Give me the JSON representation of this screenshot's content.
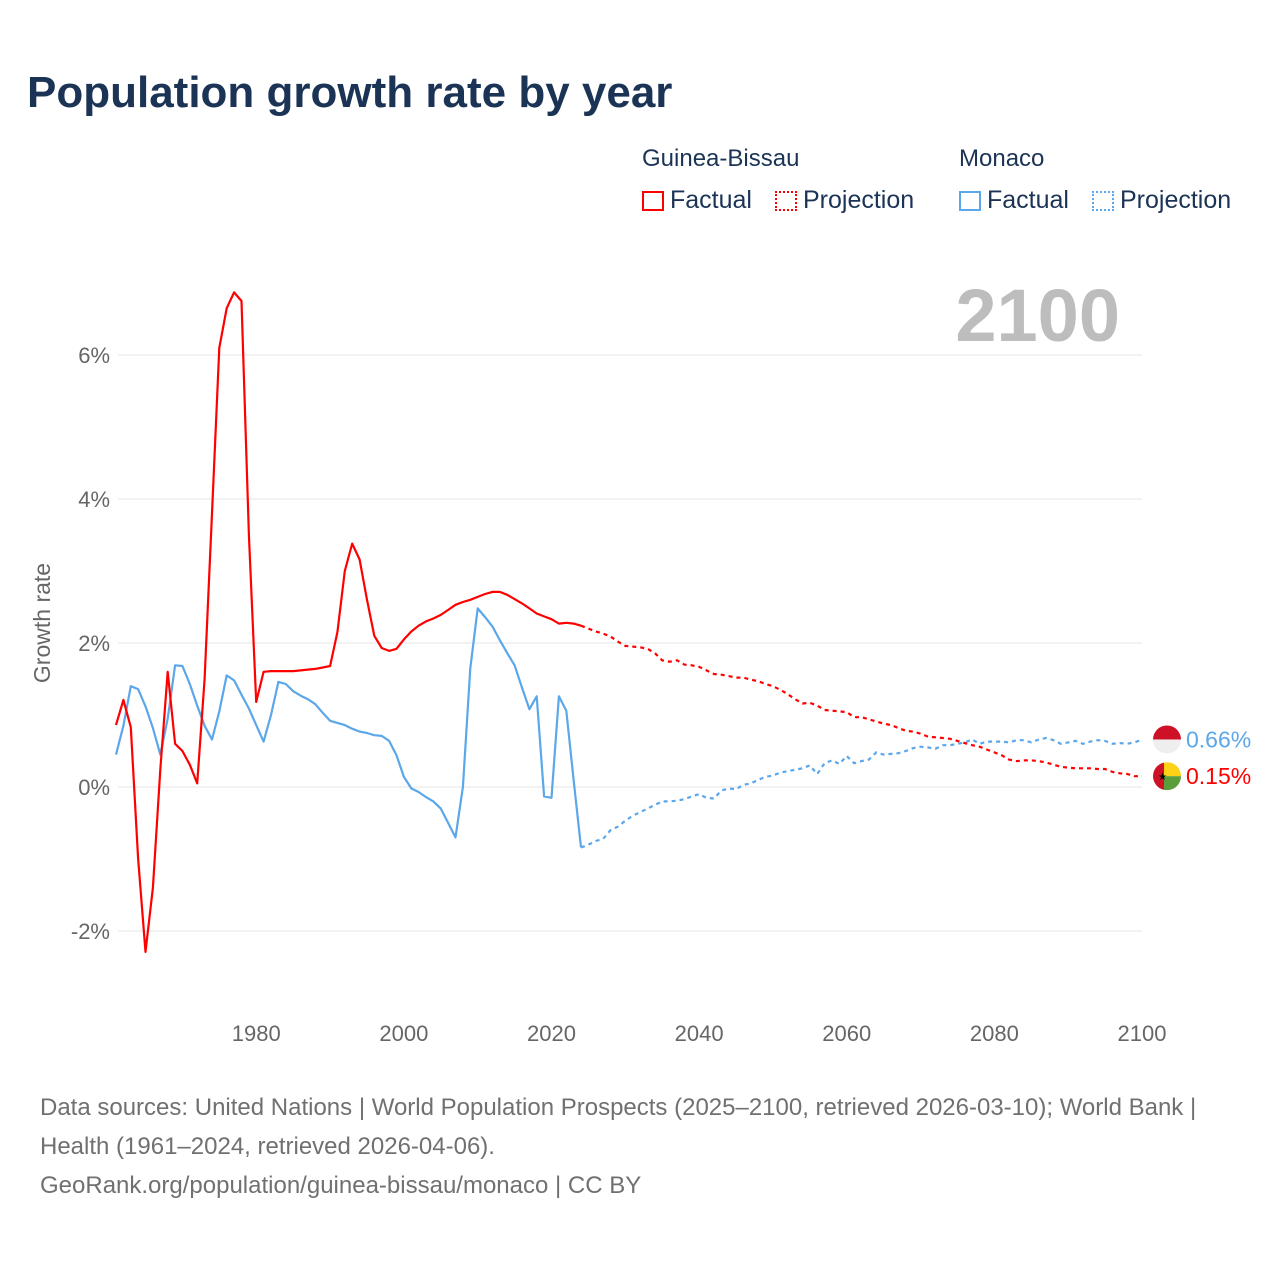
{
  "chart_data": {
    "type": "line",
    "title": "Population growth rate by year",
    "ylabel": "Growth rate",
    "xlabel": "",
    "xlim": [
      1961,
      2100
    ],
    "ylim": [
      -3,
      7
    ],
    "yticks": [
      -2,
      0,
      2,
      4,
      6
    ],
    "ytick_labels": [
      "-2%",
      "0%",
      "2%",
      "4%",
      "6%"
    ],
    "xticks": [
      1980,
      2000,
      2020,
      2040,
      2060,
      2080,
      2100
    ],
    "xtick_labels": [
      "1980",
      "2000",
      "2020",
      "2040",
      "2060",
      "2080",
      "2100"
    ],
    "grid": true,
    "current_year_label": "2100",
    "legend": {
      "placement": "top-right",
      "groups": [
        {
          "name": "Guinea-Bissau",
          "factual": "Factual",
          "projection": "Projection"
        },
        {
          "name": "Monaco",
          "factual": "Factual",
          "projection": "Projection"
        }
      ]
    },
    "series": [
      {
        "name": "Guinea-Bissau",
        "color": "#ff0000",
        "end_label": "0.15%",
        "factual": {
          "start_year": 1961,
          "values": [
            0.86,
            1.21,
            0.83,
            -0.99,
            -2.29,
            -1.4,
            0.24,
            1.6,
            0.6,
            0.5,
            0.31,
            0.05,
            1.5,
            3.8,
            6.1,
            6.65,
            6.87,
            6.75,
            3.5,
            1.18,
            1.6,
            1.61,
            1.61,
            1.61,
            1.61,
            1.62,
            1.63,
            1.64,
            1.66,
            1.68,
            2.15,
            3.0,
            3.38,
            3.16,
            2.6,
            2.1,
            1.93,
            1.89,
            1.92,
            2.05,
            2.16,
            2.24,
            2.3,
            2.34,
            2.39,
            2.46,
            2.53,
            2.57,
            2.6,
            2.64,
            2.68,
            2.71,
            2.71,
            2.67,
            2.61,
            2.55,
            2.48,
            2.41,
            2.37,
            2.33,
            2.27,
            2.28,
            2.27,
            2.24
          ]
        },
        "projection": {
          "start_year": 2025,
          "values": [
            2.2,
            2.16,
            2.13,
            2.09,
            2.02,
            1.96,
            1.95,
            1.94,
            1.92,
            1.86,
            1.76,
            1.74,
            1.76,
            1.7,
            1.69,
            1.67,
            1.62,
            1.57,
            1.56,
            1.54,
            1.52,
            1.52,
            1.49,
            1.47,
            1.43,
            1.4,
            1.35,
            1.29,
            1.22,
            1.16,
            1.17,
            1.13,
            1.07,
            1.06,
            1.05,
            1.04,
            0.97,
            0.97,
            0.94,
            0.91,
            0.88,
            0.86,
            0.82,
            0.78,
            0.77,
            0.74,
            0.7,
            0.69,
            0.68,
            0.67,
            0.64,
            0.61,
            0.58,
            0.56,
            0.52,
            0.48,
            0.44,
            0.38,
            0.36,
            0.37,
            0.37,
            0.36,
            0.34,
            0.31,
            0.28,
            0.27,
            0.26,
            0.26,
            0.26,
            0.25,
            0.25,
            0.21,
            0.19,
            0.18,
            0.15,
            0.15
          ]
        }
      },
      {
        "name": "Monaco",
        "color": "#5ba7ea",
        "end_label": "0.66%",
        "factual": {
          "start_year": 1961,
          "values": [
            0.45,
            0.85,
            1.4,
            1.36,
            1.12,
            0.82,
            0.45,
            0.95,
            1.69,
            1.68,
            1.43,
            1.13,
            0.85,
            0.66,
            1.05,
            1.55,
            1.48,
            1.28,
            1.09,
            0.86,
            0.63,
            1.0,
            1.46,
            1.43,
            1.33,
            1.27,
            1.22,
            1.15,
            1.03,
            0.92,
            0.89,
            0.86,
            0.81,
            0.77,
            0.75,
            0.72,
            0.71,
            0.64,
            0.44,
            0.14,
            -0.02,
            -0.07,
            -0.14,
            -0.2,
            -0.3,
            -0.5,
            -0.7,
            0.0,
            1.65,
            2.48,
            2.36,
            2.23,
            2.04,
            1.86,
            1.69,
            1.38,
            1.08,
            1.26,
            -0.13,
            -0.15,
            1.26,
            1.06,
            0.1,
            -0.84
          ]
        },
        "projection": {
          "start_year": 2025,
          "values": [
            -0.8,
            -0.75,
            -0.72,
            -0.6,
            -0.55,
            -0.47,
            -0.4,
            -0.35,
            -0.3,
            -0.25,
            -0.2,
            -0.2,
            -0.19,
            -0.17,
            -0.13,
            -0.1,
            -0.15,
            -0.16,
            -0.05,
            -0.02,
            -0.03,
            0.03,
            0.05,
            0.1,
            0.14,
            0.16,
            0.2,
            0.22,
            0.24,
            0.26,
            0.3,
            0.18,
            0.33,
            0.37,
            0.32,
            0.43,
            0.33,
            0.36,
            0.38,
            0.48,
            0.45,
            0.46,
            0.47,
            0.5,
            0.54,
            0.56,
            0.55,
            0.53,
            0.58,
            0.58,
            0.6,
            0.62,
            0.66,
            0.6,
            0.63,
            0.63,
            0.63,
            0.62,
            0.65,
            0.65,
            0.62,
            0.66,
            0.68,
            0.65,
            0.6,
            0.62,
            0.64,
            0.6,
            0.63,
            0.65,
            0.64,
            0.6,
            0.61,
            0.6,
            0.62,
            0.66
          ]
        }
      }
    ]
  },
  "footer": {
    "sources": "Data sources: United Nations | World Population Prospects (2025–2100, retrieved 2026-03-10); World Bank | Health (1961–2024, retrieved 2026-04-06).",
    "credit": "GeoRank.org/population/guinea-bissau/monaco | CC BY"
  }
}
